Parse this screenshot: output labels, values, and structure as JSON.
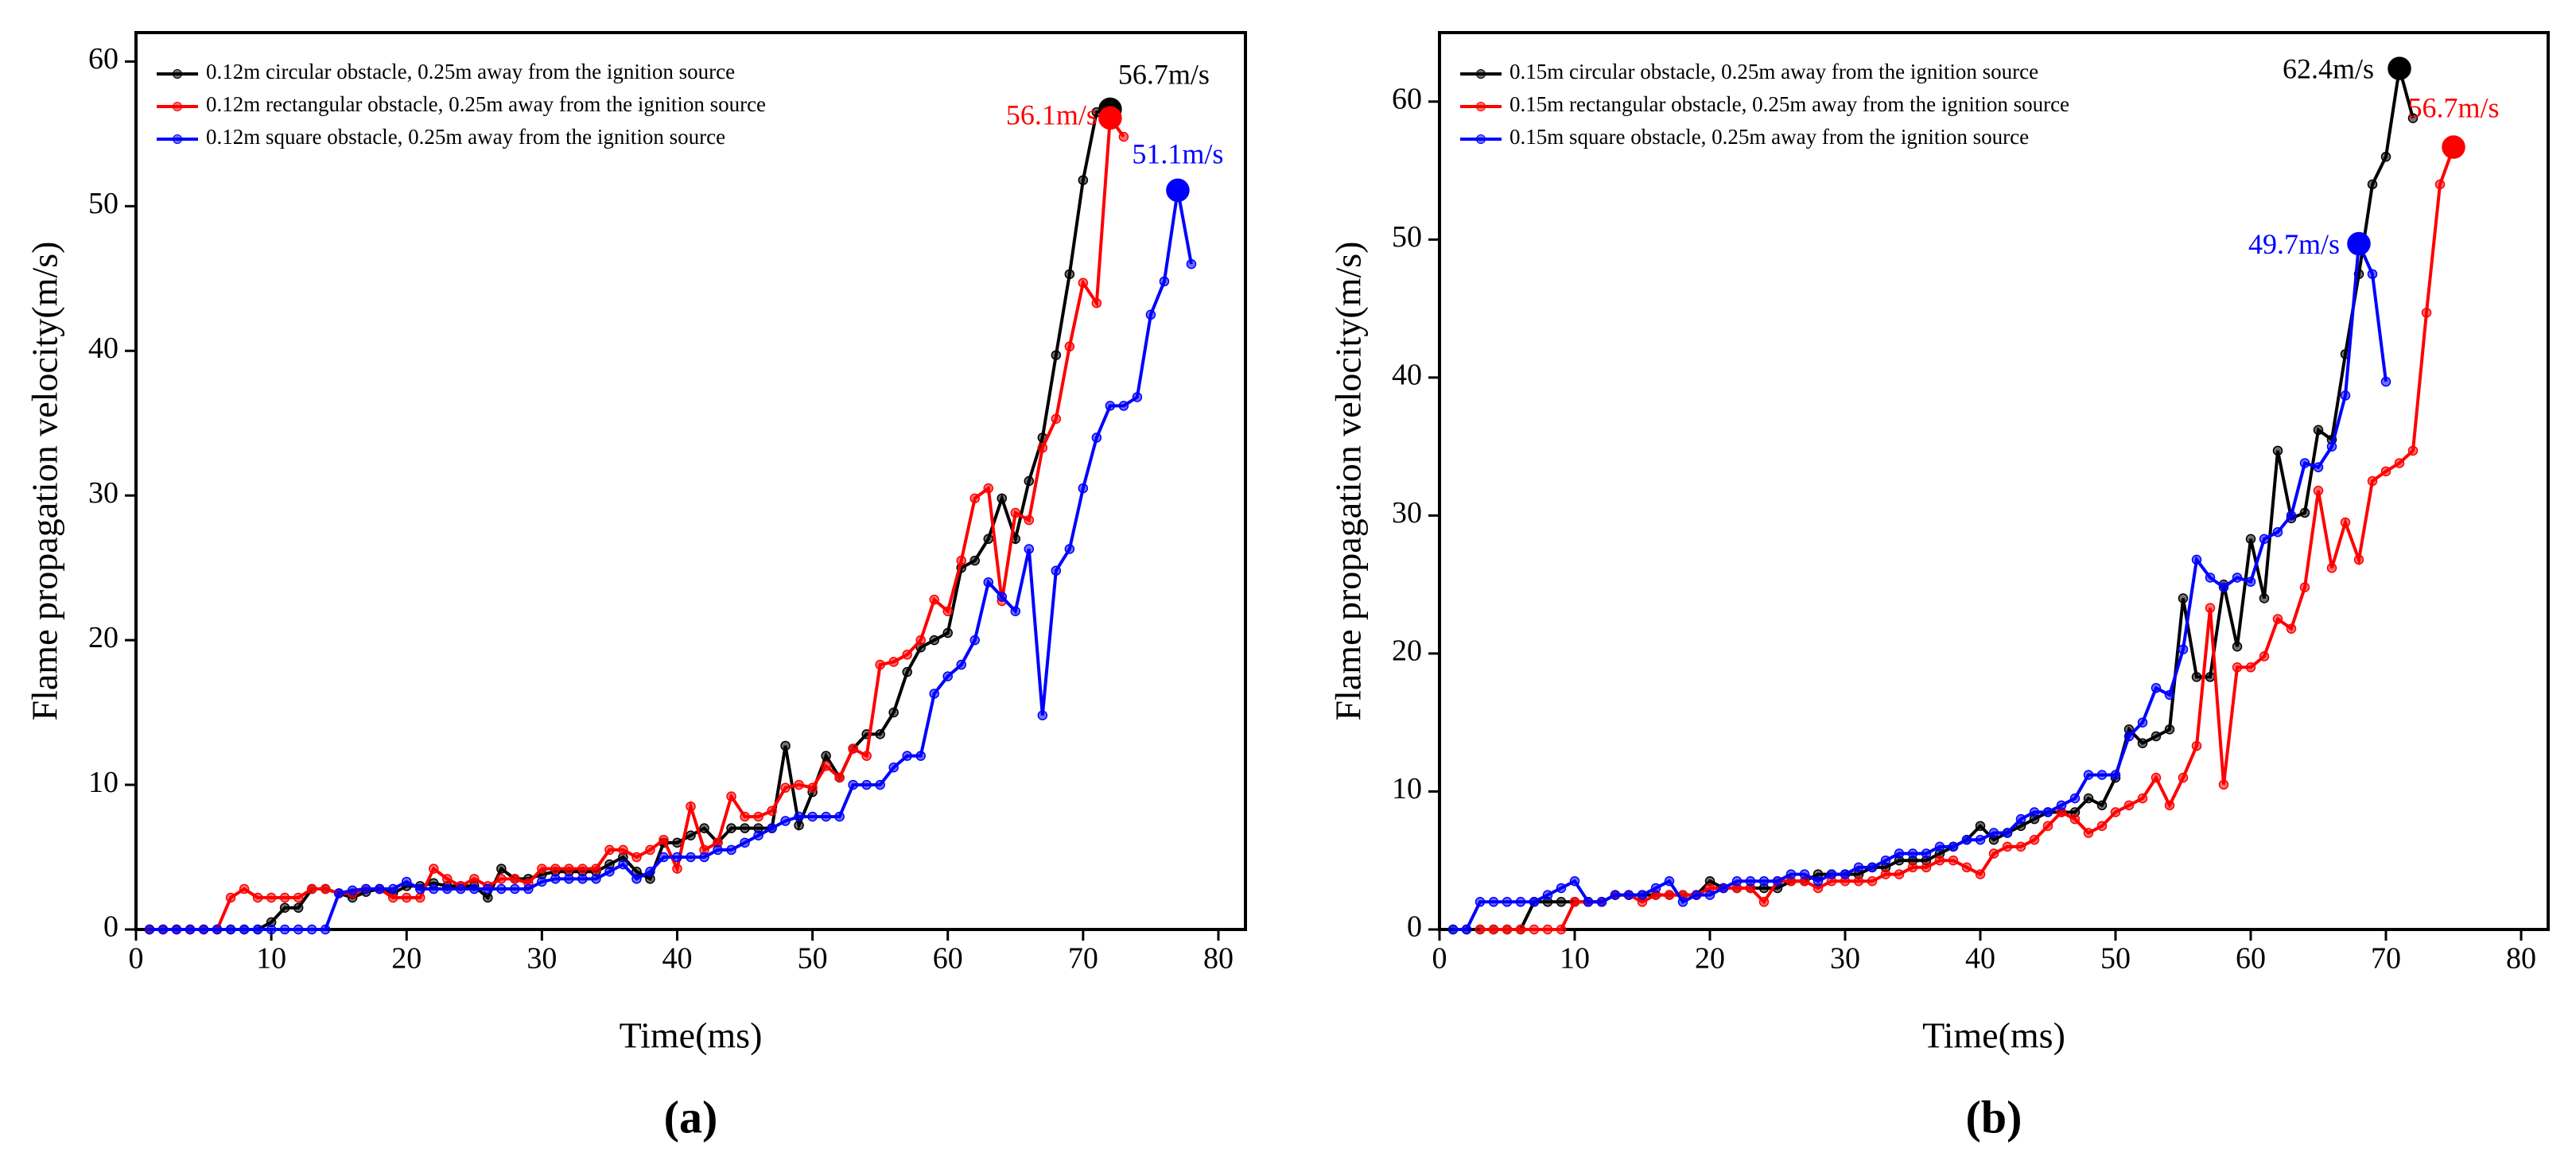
{
  "chart_data": [
    {
      "type": "line",
      "subtitle": "(a)",
      "x_label": "Time(ms)",
      "y_label": "Flame propagation velocity(m/s)",
      "xlim": [
        0,
        82
      ],
      "ylim": [
        0,
        62
      ],
      "xticks": [
        0,
        10,
        20,
        30,
        40,
        50,
        60,
        70,
        80
      ],
      "yticks": [
        0,
        10,
        20,
        30,
        40,
        50,
        60
      ],
      "legend": "upper left",
      "annotations": [
        "56.7m/s",
        "56.1m/s",
        "51.1m/s"
      ],
      "series": [
        {
          "name": "0.12m circular obstacle, 0.25m away from the ignition source",
          "color": "#000000",
          "x": [
            1,
            2,
            3,
            4,
            5,
            6,
            7,
            8,
            9,
            10,
            11,
            12,
            13,
            14,
            15,
            16,
            17,
            18,
            19,
            20,
            21,
            22,
            23,
            24,
            25,
            26,
            27,
            28,
            29,
            30,
            31,
            32,
            33,
            34,
            35,
            36,
            37,
            38,
            39,
            40,
            41,
            42,
            43,
            44,
            45,
            46,
            47,
            48,
            49,
            50,
            51,
            52,
            53,
            54,
            55,
            56,
            57,
            58,
            59,
            60,
            61,
            62,
            63,
            64,
            65,
            66,
            67,
            68,
            69,
            70,
            71,
            72
          ],
          "values": [
            0,
            0,
            0,
            0,
            0,
            0,
            0,
            0,
            0,
            0.5,
            1.5,
            1.5,
            2.8,
            2.8,
            2.5,
            2.2,
            2.6,
            2.8,
            2.5,
            3,
            3,
            3.2,
            3,
            3,
            3,
            2.2,
            4.2,
            3.5,
            3.5,
            3.8,
            4,
            4,
            4,
            4,
            4.5,
            5,
            4,
            3.5,
            6,
            6,
            6.5,
            7,
            6,
            7,
            7,
            7,
            7,
            12.7,
            7.2,
            9.5,
            12,
            10.5,
            12.5,
            13.5,
            13.5,
            15,
            17.8,
            19.5,
            20,
            20.5,
            25,
            25.5,
            27,
            29.8,
            27,
            31,
            34,
            39.7,
            45.3,
            51.8,
            56.5,
            56.7
          ]
        },
        {
          "name": "0.12m rectangular obstacle, 0.25m away from the ignition source",
          "color": "#ff0000",
          "x": [
            1,
            2,
            3,
            4,
            5,
            6,
            7,
            8,
            9,
            10,
            11,
            12,
            13,
            14,
            15,
            16,
            17,
            18,
            19,
            20,
            21,
            22,
            23,
            24,
            25,
            26,
            27,
            28,
            29,
            30,
            31,
            32,
            33,
            34,
            35,
            36,
            37,
            38,
            39,
            40,
            41,
            42,
            43,
            44,
            45,
            46,
            47,
            48,
            49,
            50,
            51,
            52,
            53,
            54,
            55,
            56,
            57,
            58,
            59,
            60,
            61,
            62,
            63,
            64,
            65,
            66,
            67,
            68,
            69,
            70,
            71,
            72,
            73
          ],
          "values": [
            0,
            0,
            0,
            0,
            0,
            0,
            2.2,
            2.8,
            2.2,
            2.2,
            2.2,
            2.2,
            2.8,
            2.8,
            2.5,
            2.5,
            2.8,
            2.8,
            2.2,
            2.2,
            2.2,
            4.2,
            3.5,
            3,
            3.5,
            3,
            3.5,
            3.5,
            3.2,
            4.2,
            4.2,
            4.2,
            4.2,
            4.2,
            5.5,
            5.5,
            5,
            5.5,
            6.2,
            4.2,
            8.5,
            5.5,
            6,
            9.2,
            7.8,
            7.8,
            8.2,
            9.8,
            10,
            9.8,
            11.3,
            10.5,
            12.5,
            12,
            18.3,
            18.5,
            19,
            20,
            22.8,
            22,
            25.5,
            29.8,
            30.5,
            22.7,
            28.8,
            28.3,
            33.3,
            35.3,
            40.3,
            44.7,
            43.3,
            56.1,
            54.8
          ]
        },
        {
          "name": "0.12m square obstacle, 0.25m away from the ignition source",
          "color": "#0000ff",
          "x": [
            1,
            2,
            3,
            4,
            5,
            6,
            7,
            8,
            9,
            10,
            11,
            12,
            13,
            14,
            15,
            16,
            17,
            18,
            19,
            20,
            21,
            22,
            23,
            24,
            25,
            26,
            27,
            28,
            29,
            30,
            31,
            32,
            33,
            34,
            35,
            36,
            37,
            38,
            39,
            40,
            41,
            42,
            43,
            44,
            45,
            46,
            47,
            48,
            49,
            50,
            51,
            52,
            53,
            54,
            55,
            56,
            57,
            58,
            59,
            60,
            61,
            62,
            63,
            64,
            65,
            66,
            67,
            68,
            69,
            70,
            71,
            72,
            73,
            74,
            75,
            76,
            77,
            78
          ],
          "values": [
            0,
            0,
            0,
            0,
            0,
            0,
            0,
            0,
            0,
            0,
            0,
            0,
            0,
            0,
            2.5,
            2.7,
            2.8,
            2.8,
            2.8,
            3.3,
            2.8,
            2.8,
            2.8,
            2.8,
            2.8,
            2.8,
            2.8,
            2.8,
            2.8,
            3.3,
            3.5,
            3.5,
            3.5,
            3.5,
            4,
            4.5,
            3.5,
            4,
            5,
            5,
            5,
            5,
            5.5,
            5.5,
            6,
            6.5,
            7,
            7.5,
            7.8,
            7.8,
            7.8,
            7.8,
            10,
            10,
            10,
            11.2,
            12,
            12,
            16.3,
            17.5,
            18.3,
            20,
            24,
            23,
            22,
            26.3,
            14.8,
            24.8,
            26.3,
            30.5,
            34,
            36.2,
            36.2,
            36.8,
            42.5,
            44.8,
            51.1,
            46
          ]
        }
      ]
    },
    {
      "type": "line",
      "subtitle": "(b)",
      "x_label": "Time(ms)",
      "y_label": "Flame propagation velocity(m/s)",
      "xlim": [
        0,
        82
      ],
      "ylim": [
        0,
        65
      ],
      "xticks": [
        0,
        10,
        20,
        30,
        40,
        50,
        60,
        70,
        80
      ],
      "yticks": [
        0,
        10,
        20,
        30,
        40,
        50,
        60
      ],
      "legend": "upper left",
      "annotations": [
        "62.4m/s",
        "56.7m/s",
        "49.7m/s"
      ],
      "series": [
        {
          "name": "0.15m circular obstacle, 0.25m away from the ignition source",
          "color": "#000000",
          "x": [
            1,
            2,
            3,
            4,
            5,
            6,
            7,
            8,
            9,
            10,
            11,
            12,
            13,
            14,
            15,
            16,
            17,
            18,
            19,
            20,
            21,
            22,
            23,
            24,
            25,
            26,
            27,
            28,
            29,
            30,
            31,
            32,
            33,
            34,
            35,
            36,
            37,
            38,
            39,
            40,
            41,
            42,
            43,
            44,
            45,
            46,
            47,
            48,
            49,
            50,
            51,
            52,
            53,
            54,
            55,
            56,
            57,
            58,
            59,
            60,
            61,
            62,
            63,
            64,
            65,
            66,
            67,
            68,
            69,
            70,
            71,
            72
          ],
          "values": [
            0,
            0,
            0,
            0,
            0,
            0,
            2,
            2,
            2,
            2,
            2,
            2,
            2.5,
            2.5,
            2.5,
            2.5,
            2.5,
            2.5,
            2.5,
            3.5,
            3,
            3,
            3,
            3,
            3,
            3.5,
            3.5,
            4,
            4,
            4,
            4,
            4.5,
            4.5,
            5,
            5,
            5,
            5.5,
            6,
            6.5,
            7.5,
            6.5,
            7,
            7.5,
            8,
            8.5,
            8.5,
            8.5,
            9.5,
            9,
            11,
            14.5,
            13.5,
            14,
            14.5,
            24,
            18.3,
            18.3,
            25,
            20.5,
            28.3,
            24,
            34.7,
            29.8,
            30.2,
            36.2,
            35.5,
            41.7,
            47.5,
            54,
            56,
            62.4,
            58.8
          ]
        },
        {
          "name": "0.15m rectangular obstacle, 0.25m away from the ignition source",
          "color": "#ff0000",
          "x": [
            3,
            4,
            5,
            6,
            7,
            8,
            9,
            10,
            11,
            12,
            13,
            14,
            15,
            16,
            17,
            18,
            19,
            20,
            21,
            22,
            23,
            24,
            25,
            26,
            27,
            28,
            29,
            30,
            31,
            32,
            33,
            34,
            35,
            36,
            37,
            38,
            39,
            40,
            41,
            42,
            43,
            44,
            45,
            46,
            47,
            48,
            49,
            50,
            51,
            52,
            53,
            54,
            55,
            56,
            57,
            58,
            59,
            60,
            61,
            62,
            63,
            64,
            65,
            66,
            67,
            68,
            69,
            70,
            71,
            72,
            73,
            74,
            75
          ],
          "values": [
            0,
            0,
            0,
            0,
            0,
            0,
            0,
            2,
            2,
            2,
            2.5,
            2.5,
            2,
            2.5,
            2.5,
            2.5,
            2.5,
            3,
            3,
            3,
            3,
            2,
            3.5,
            3.5,
            3.5,
            3,
            3.5,
            3.5,
            3.5,
            3.5,
            4,
            4,
            4.5,
            4.5,
            5,
            5,
            4.5,
            4,
            5.5,
            6,
            6,
            6.5,
            7.5,
            8.5,
            8,
            7,
            7.5,
            8.5,
            9,
            9.5,
            11,
            9,
            11,
            13.3,
            23.3,
            10.5,
            19,
            19,
            19.8,
            22.5,
            21.8,
            24.8,
            31.8,
            26.2,
            29.5,
            26.8,
            32.5,
            33.2,
            33.8,
            34.7,
            44.7,
            54,
            56.7
          ]
        },
        {
          "name": "0.15m square obstacle, 0.25m away from the ignition source",
          "color": "#0000ff",
          "x": [
            1,
            2,
            3,
            4,
            5,
            6,
            7,
            8,
            9,
            10,
            11,
            12,
            13,
            14,
            15,
            16,
            17,
            18,
            19,
            20,
            21,
            22,
            23,
            24,
            25,
            26,
            27,
            28,
            29,
            30,
            31,
            32,
            33,
            34,
            35,
            36,
            37,
            38,
            39,
            40,
            41,
            42,
            43,
            44,
            45,
            46,
            47,
            48,
            49,
            50,
            51,
            52,
            53,
            54,
            55,
            56,
            57,
            58,
            59,
            60,
            61,
            62,
            63,
            64,
            65,
            66,
            67,
            68,
            69,
            70
          ],
          "values": [
            0,
            0,
            2,
            2,
            2,
            2,
            2,
            2.5,
            3,
            3.5,
            2,
            2,
            2.5,
            2.5,
            2.5,
            3,
            3.5,
            2,
            2.5,
            2.5,
            3,
            3.5,
            3.5,
            3.5,
            3.5,
            4,
            4,
            3.5,
            4,
            4,
            4.5,
            4.5,
            5,
            5.5,
            5.5,
            5.5,
            6,
            6,
            6.5,
            6.5,
            7,
            7,
            8,
            8.5,
            8.5,
            9,
            9.5,
            11.2,
            11.2,
            11.2,
            14,
            15,
            17.5,
            17,
            20.3,
            26.8,
            25.5,
            24.8,
            25.5,
            25.2,
            28.3,
            28.8,
            30,
            33.8,
            33.5,
            35,
            38.7,
            49.7,
            47.5,
            39.7
          ]
        }
      ]
    }
  ]
}
